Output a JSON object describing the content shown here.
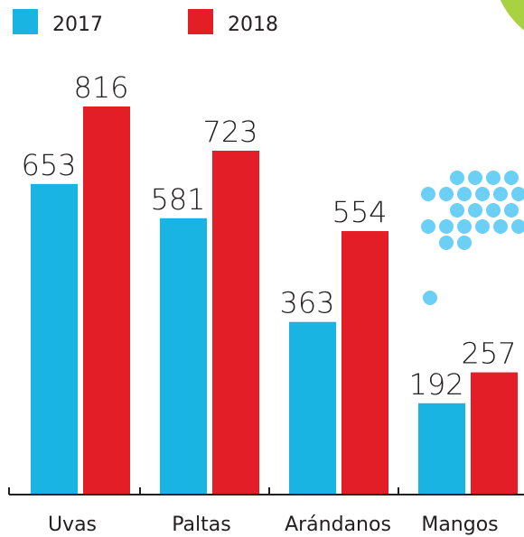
{
  "chart_data": {
    "type": "bar",
    "categories": [
      "Uvas",
      "Paltas",
      "Arándanos",
      "Mangos"
    ],
    "series": [
      {
        "name": "2017",
        "color": "#1ab4e3",
        "values": [
          653,
          581,
          363,
          192
        ]
      },
      {
        "name": "2018",
        "color": "#e31e26",
        "values": [
          816,
          723,
          554,
          257
        ]
      }
    ]
  }
}
